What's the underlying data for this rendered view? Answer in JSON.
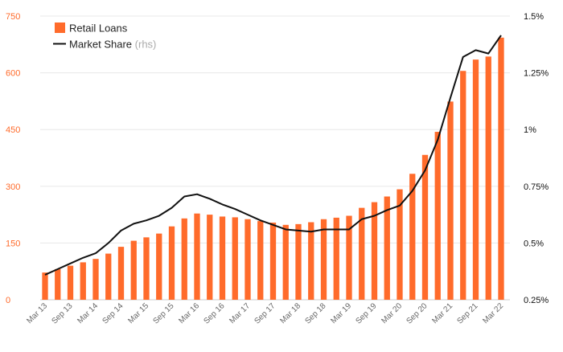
{
  "chart_data": {
    "type": "bar",
    "x": [
      "Mar 13",
      "Jun 13",
      "Sep 13",
      "Dec 13",
      "Mar 14",
      "Jun 14",
      "Sep 14",
      "Dec 14",
      "Mar 15",
      "Jun 15",
      "Sep 15",
      "Dec 15",
      "Mar 16",
      "Jun 16",
      "Sep 16",
      "Dec 16",
      "Mar 17",
      "Jun 17",
      "Sep 17",
      "Dec 17",
      "Mar 18",
      "Jun 18",
      "Sep 18",
      "Dec 18",
      "Mar 19",
      "Jun 19",
      "Sep 19",
      "Dec 19",
      "Mar 20",
      "Jun 20",
      "Sep 20",
      "Dec 20",
      "Mar 21",
      "Jun 21",
      "Sep 21",
      "Dec 21",
      "Mar 22"
    ],
    "x_tick_labels": [
      "Mar 13",
      "Sep 13",
      "Mar 14",
      "Sep 14",
      "Mar 15",
      "Sep 15",
      "Mar 16",
      "Sep 16",
      "Mar 17",
      "Sep 17",
      "Mar 18",
      "Sep 18",
      "Mar 19",
      "Sep 19",
      "Mar 20",
      "Sep 20",
      "Mar 21",
      "Sep 21",
      "Mar 22"
    ],
    "series": [
      {
        "name": "Retail Loans",
        "kind": "bar",
        "axis": "left",
        "color": "#ff6b2b",
        "values": [
          72,
          81,
          90,
          99,
          108,
          122,
          140,
          156,
          165,
          175,
          194,
          215,
          228,
          225,
          220,
          218,
          213,
          208,
          204,
          198,
          200,
          205,
          213,
          217,
          222,
          243,
          258,
          273,
          292,
          333,
          383,
          444,
          524,
          605,
          635,
          643,
          693
        ]
      },
      {
        "name": "Market Share",
        "name_suffix": " (rhs)",
        "kind": "line",
        "axis": "right",
        "color": "#111111",
        "values": [
          0.36,
          0.385,
          0.41,
          0.435,
          0.455,
          0.5,
          0.555,
          0.585,
          0.6,
          0.62,
          0.655,
          0.705,
          0.715,
          0.695,
          0.67,
          0.65,
          0.625,
          0.6,
          0.58,
          0.56,
          0.555,
          0.55,
          0.56,
          0.56,
          0.56,
          0.605,
          0.62,
          0.645,
          0.665,
          0.73,
          0.82,
          0.955,
          1.14,
          1.32,
          1.35,
          1.335,
          1.415
        ]
      }
    ],
    "left_axis": {
      "ticks": [
        0,
        150,
        300,
        450,
        600,
        750
      ],
      "tick_labels": [
        "0",
        "150",
        "300",
        "450",
        "600",
        "750"
      ],
      "ylim": [
        0,
        750
      ]
    },
    "right_axis": {
      "ticks": [
        0.25,
        0.5,
        0.75,
        1.0,
        1.25,
        1.5
      ],
      "tick_labels": [
        "0.25%",
        "0.5%",
        "0.75%",
        "1%",
        "1.25%",
        "1.5%"
      ],
      "ylim": [
        0.25,
        1.5
      ]
    },
    "grid": true,
    "legend_position": "top-left",
    "colors": {
      "bar": "#ff6b2b",
      "line": "#111111",
      "left_tick": "#ff6b2b",
      "right_tick": "#111111",
      "grid": "#e8e8e8",
      "x_tick": "#666666",
      "rhs_note": "#aaaaaa"
    }
  }
}
